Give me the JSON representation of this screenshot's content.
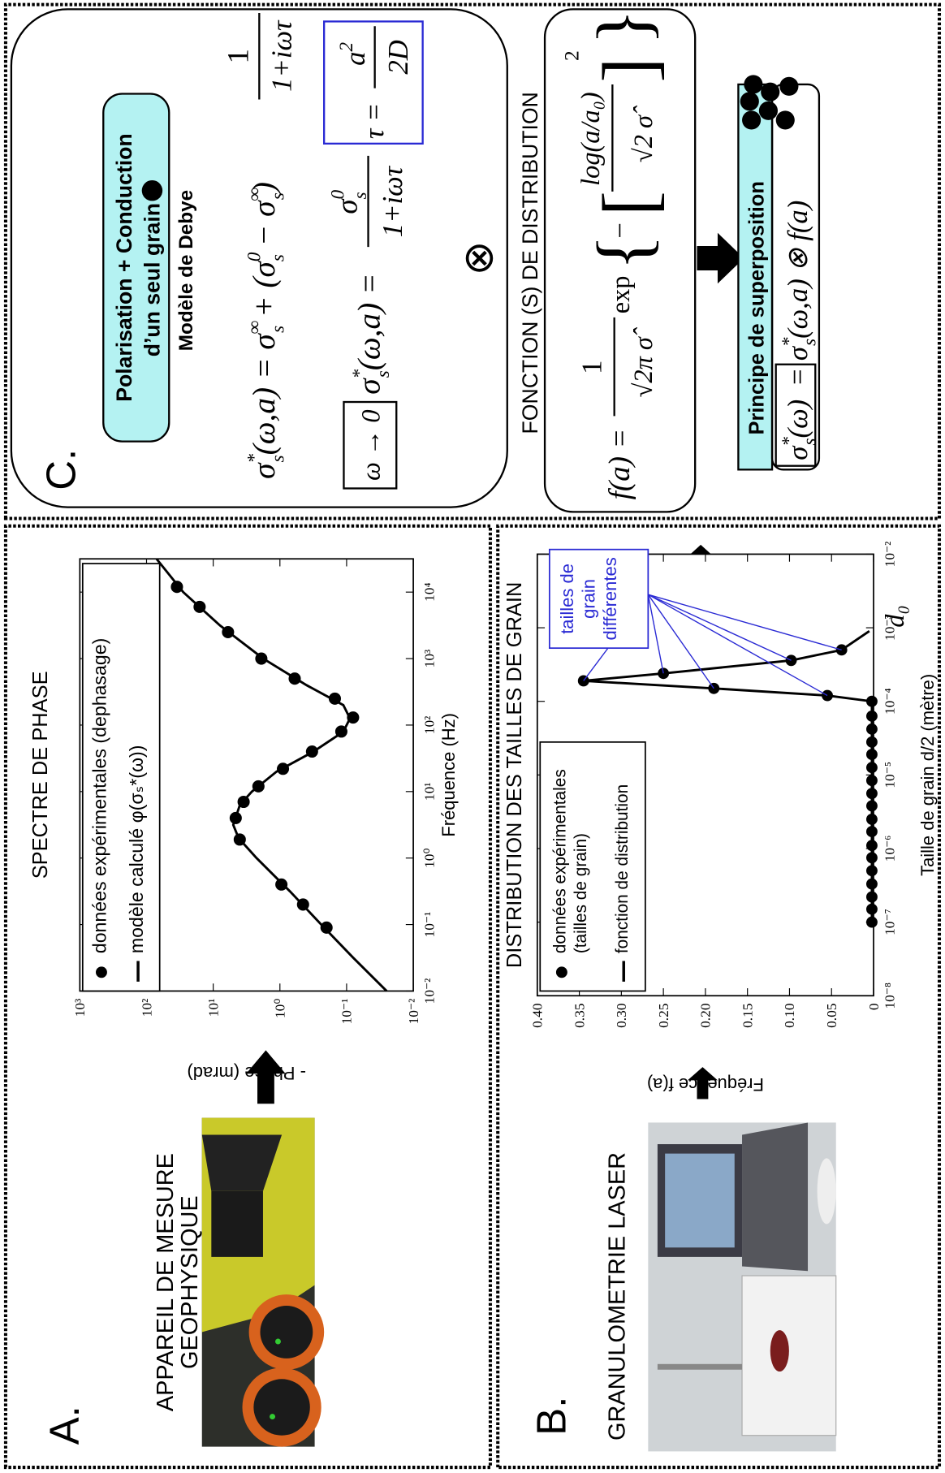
{
  "panel_a": {
    "label": "A.",
    "title": [
      "APPAREIL DE MESURE",
      "GEOPHYSIQUE"
    ]
  },
  "panel_b": {
    "label": "B.",
    "title": "GRANULOMETRIE LASER"
  },
  "panel_c": {
    "label": "C.",
    "box_title": [
      "Polarisation + Conduction",
      "d’un seul grain"
    ],
    "model": "Modèle de Debye",
    "eq1": [
      "σ",
      "*",
      "s",
      "(ω,a) = σ",
      "∞",
      "s",
      " + (σ",
      "0",
      "s",
      " − σ",
      "∞",
      "s",
      ")"
    ],
    "eq1_frac": [
      "1",
      "1+iωτ"
    ],
    "limit": "ω → 0",
    "eq2": [
      "σ",
      "*",
      "s",
      "(ω,a) ="
    ],
    "eq2_num": [
      "σ",
      "0",
      "s"
    ],
    "eq2_den": "1+iωτ",
    "tau": [
      "τ =",
      "a",
      "2",
      "2D"
    ],
    "otimes": "⊗",
    "dist_title": "FONCTION (S) DE DISTRIBUTION",
    "fa": {
      "lhs": "f(a) =",
      "num": "1",
      "den": "√2π σ̂",
      "exp": "exp",
      "open_brace": "{",
      "minus": "−",
      "open_bracket": "[",
      "inner_num": "log(a/a₀)",
      "inner_den": "√2 σ̂",
      "close_bracket": "]",
      "power": "2",
      "close_brace": "}"
    },
    "superposition": "Principe de superposition",
    "eq3": [
      "σ",
      "*",
      "s",
      "(ω)",
      " = σ",
      "*",
      "s",
      "(ω,a) ⊗ f(a)"
    ]
  },
  "chart_data": [
    {
      "type": "line",
      "title": "SPECTRE DE PHASE",
      "xlabel": "Fréquence (Hz)",
      "ylabel": "- Phase (mrad)",
      "xscale": "log",
      "yscale": "log",
      "xlim": [
        0.01,
        31623
      ],
      "ylim": [
        0.01,
        1000
      ],
      "xticks": [
        {
          "value": 0.01,
          "label": "10⁻²"
        },
        {
          "value": 0.1,
          "label": "10⁻¹"
        },
        {
          "value": 1,
          "label": "10⁰"
        },
        {
          "value": 10,
          "label": "10¹"
        },
        {
          "value": 100,
          "label": "10²"
        },
        {
          "value": 1000,
          "label": "10³"
        },
        {
          "value": 10000,
          "label": "10⁴"
        }
      ],
      "yticks": [
        {
          "value": 0.01,
          "label": "10⁻²"
        },
        {
          "value": 0.1,
          "label": "10⁻¹"
        },
        {
          "value": 1,
          "label": "10⁰"
        },
        {
          "value": 10,
          "label": "10¹"
        },
        {
          "value": 100,
          "label": "10²"
        },
        {
          "value": 1000,
          "label": "10³"
        }
      ],
      "legend": "upper left",
      "series": [
        {
          "name": "données expérimentales (dephasage)",
          "color": "#000000",
          "style": "markers",
          "x": [
            0.09,
            0.2,
            0.4,
            1.9,
            4,
            7,
            12,
            22,
            40,
            80,
            130,
            250,
            500,
            1000,
            2500,
            6000,
            12000
          ],
          "values": [
            0.2,
            0.45,
            0.95,
            4.0,
            4.6,
            3.5,
            2.1,
            0.9,
            0.33,
            0.12,
            0.08,
            0.15,
            0.6,
            1.9,
            6,
            16,
            35
          ]
        },
        {
          "name": "modèle calculé φ(σₛ*(ω))",
          "color": "#000000",
          "style": "line",
          "x": [
            0.01,
            0.0316,
            0.1,
            0.316,
            1,
            2,
            3.16,
            6.31,
            10,
            20,
            39.8,
            79.4,
            126,
            200,
            398,
            1000,
            3160,
            10000,
            31623
          ],
          "values": [
            0.0251,
            0.0794,
            0.24,
            0.708,
            2.24,
            4.17,
            5.01,
            3.98,
            2.63,
            1.12,
            0.316,
            0.112,
            0.0891,
            0.112,
            0.398,
            1.78,
            7.94,
            28.2,
            70.8
          ]
        }
      ]
    },
    {
      "type": "line",
      "title": "DISTRIBUTION DES TAILLES DE GRAIN",
      "xlabel": "Taille de grain d/2 (mètre)",
      "ylabel": "Fréquence f(a)",
      "xscale": "log",
      "yscale": "linear",
      "xlim": [
        1e-08,
        0.01
      ],
      "ylim": [
        0,
        0.4
      ],
      "xticks": [
        {
          "value": 1e-08,
          "label": "10⁻⁸"
        },
        {
          "value": 1e-07,
          "label": "10⁻⁷"
        },
        {
          "value": 1e-06,
          "label": "10⁻⁶"
        },
        {
          "value": 1e-05,
          "label": "10⁻⁵"
        },
        {
          "value": 0.0001,
          "label": "10⁻⁴"
        },
        {
          "value": 0.001,
          "label": "10⁻³"
        },
        {
          "value": 0.01,
          "label": "10⁻²"
        }
      ],
      "yticks": [
        0,
        0.05,
        {
          "value": 0.1,
          "label": "0.10"
        },
        0.15,
        {
          "value": 0.2,
          "label": "0.20"
        },
        0.25,
        {
          "value": 0.3,
          "label": "0.30"
        },
        0.35,
        {
          "value": 0.4,
          "label": "0.40"
        }
      ],
      "legend": "upper left",
      "series": [
        {
          "name": "données expérimentales (tailles de grain)",
          "color": "#000000",
          "style": "markers",
          "x": [
            1e-07,
            1.5e-07,
            2.2e-07,
            3.3e-07,
            5e-07,
            7.5e-07,
            1.1e-06,
            1.7e-06,
            2.5e-06,
            3.8e-06,
            5.6e-06,
            8.4e-06,
            1.26e-05,
            1.9e-05,
            2.8e-05,
            4.2e-05,
            6.3e-05,
            0.0001,
            0.00012,
            0.00015,
            0.00019,
            0.00024,
            0.00036,
            0.0005
          ],
          "values": [
            0.002,
            0.002,
            0.002,
            0.002,
            0.002,
            0.002,
            0.002,
            0.002,
            0.002,
            0.002,
            0.002,
            0.002,
            0.002,
            0.002,
            0.002,
            0.002,
            0.002,
            0.002,
            0.055,
            0.19,
            0.345,
            0.25,
            0.098,
            0.038
          ]
        },
        {
          "name": "fonction de distribution",
          "color": "#000000",
          "style": "line",
          "x": [
            1e-07,
            0.0001,
            0.00012,
            0.00015,
            0.00019,
            0.00024,
            0.00036,
            0.0005,
            0.0009
          ],
          "values": [
            0.002,
            0.002,
            0.055,
            0.19,
            0.345,
            0.25,
            0.098,
            0.038,
            0.005
          ]
        }
      ],
      "annotations": [
        {
          "text": "tailles de grain différentes",
          "color": "#2a2ad4"
        },
        {
          "text": "d₀"
        }
      ]
    }
  ]
}
